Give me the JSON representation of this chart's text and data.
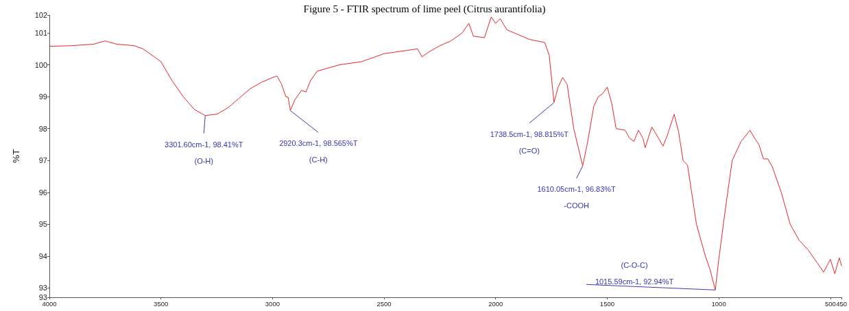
{
  "chart_data": {
    "type": "line",
    "title": "Figure 5 - FTIR spectrum of lime peel (Citrus aurantifolia)",
    "ylabel": "%T",
    "xlim": [
      4000,
      450
    ],
    "ylim": [
      92.71,
      101.56
    ],
    "xticks": [
      4000,
      3500,
      3000,
      2500,
      2000,
      1500,
      1000,
      500,
      450
    ],
    "yticks": [
      {
        "value": 92.71,
        "label": "93"
      },
      93,
      94,
      95,
      96,
      97,
      98,
      99,
      100,
      101,
      {
        "value": 101.56,
        "label": "102"
      }
    ],
    "grid": false,
    "marker": "none",
    "line_style": "solid",
    "series": [
      {
        "color": "#e8262a",
        "x": [
          4000,
          3900,
          3800,
          3750,
          3700,
          3620,
          3580,
          3500,
          3450,
          3400,
          3350,
          3301.6,
          3250,
          3200,
          3150,
          3100,
          3050,
          3000,
          2980,
          2960,
          2940,
          2930,
          2920.3,
          2900,
          2870,
          2850,
          2830,
          2800,
          2700,
          2600,
          2500,
          2400,
          2350,
          2330,
          2300,
          2250,
          2200,
          2150,
          2120,
          2100,
          2050,
          2020,
          2000,
          1980,
          1950,
          1900,
          1850,
          1780,
          1760,
          1738.5,
          1720,
          1700,
          1680,
          1650,
          1610.05,
          1590,
          1560,
          1540,
          1520,
          1500,
          1480,
          1460,
          1420,
          1400,
          1380,
          1360,
          1340,
          1330,
          1300,
          1270,
          1250,
          1230,
          1200,
          1180,
          1160,
          1140,
          1100,
          1060,
          1040,
          1015.59,
          1000,
          970,
          940,
          900,
          860,
          840,
          820,
          800,
          780,
          760,
          720,
          680,
          640,
          600,
          560,
          530,
          500,
          480,
          460,
          450
        ],
        "values": [
          100.58,
          100.6,
          100.65,
          100.75,
          100.65,
          100.6,
          100.5,
          100.1,
          99.5,
          99.0,
          98.6,
          98.41,
          98.45,
          98.65,
          98.95,
          99.25,
          99.45,
          99.6,
          99.65,
          99.4,
          99.0,
          98.98,
          98.57,
          98.9,
          99.2,
          99.15,
          99.5,
          99.8,
          100.0,
          100.1,
          100.35,
          100.45,
          100.5,
          100.25,
          100.4,
          100.6,
          100.75,
          101.0,
          101.3,
          100.9,
          100.85,
          101.5,
          101.3,
          101.45,
          101.1,
          100.95,
          100.8,
          100.7,
          100.3,
          98.82,
          99.3,
          99.6,
          99.4,
          98.0,
          96.83,
          97.5,
          98.7,
          99.0,
          99.1,
          99.3,
          98.8,
          98.0,
          97.95,
          97.7,
          97.6,
          97.95,
          97.7,
          97.4,
          98.05,
          97.7,
          97.45,
          97.8,
          98.45,
          97.9,
          97.0,
          96.85,
          95.0,
          94.0,
          93.6,
          92.94,
          93.9,
          95.5,
          97.0,
          97.6,
          97.95,
          97.7,
          97.5,
          97.05,
          97.05,
          96.8,
          96.0,
          95.0,
          94.5,
          94.2,
          93.8,
          93.5,
          93.9,
          93.45,
          93.95,
          93.7
        ]
      }
    ],
    "annotations": [
      {
        "text": "3301.60cm-1, 98.41%T\n(O-H)",
        "x": 3301.6,
        "y": 98.41
      },
      {
        "text": "2920.3cm-1, 98.565%T\n(C-H)",
        "x": 2920.3,
        "y": 98.565
      },
      {
        "text": "1738.5cm-1, 98.815%T\n(C=O)",
        "x": 1738.5,
        "y": 98.815
      },
      {
        "text": "1610.05cm-1, 96.83%T\n-COOH",
        "x": 1610.05,
        "y": 96.83
      },
      {
        "text": "(C-O-C)\n1015.59cm-1, 92.94%T",
        "x": 1015.59,
        "y": 92.94
      }
    ]
  }
}
